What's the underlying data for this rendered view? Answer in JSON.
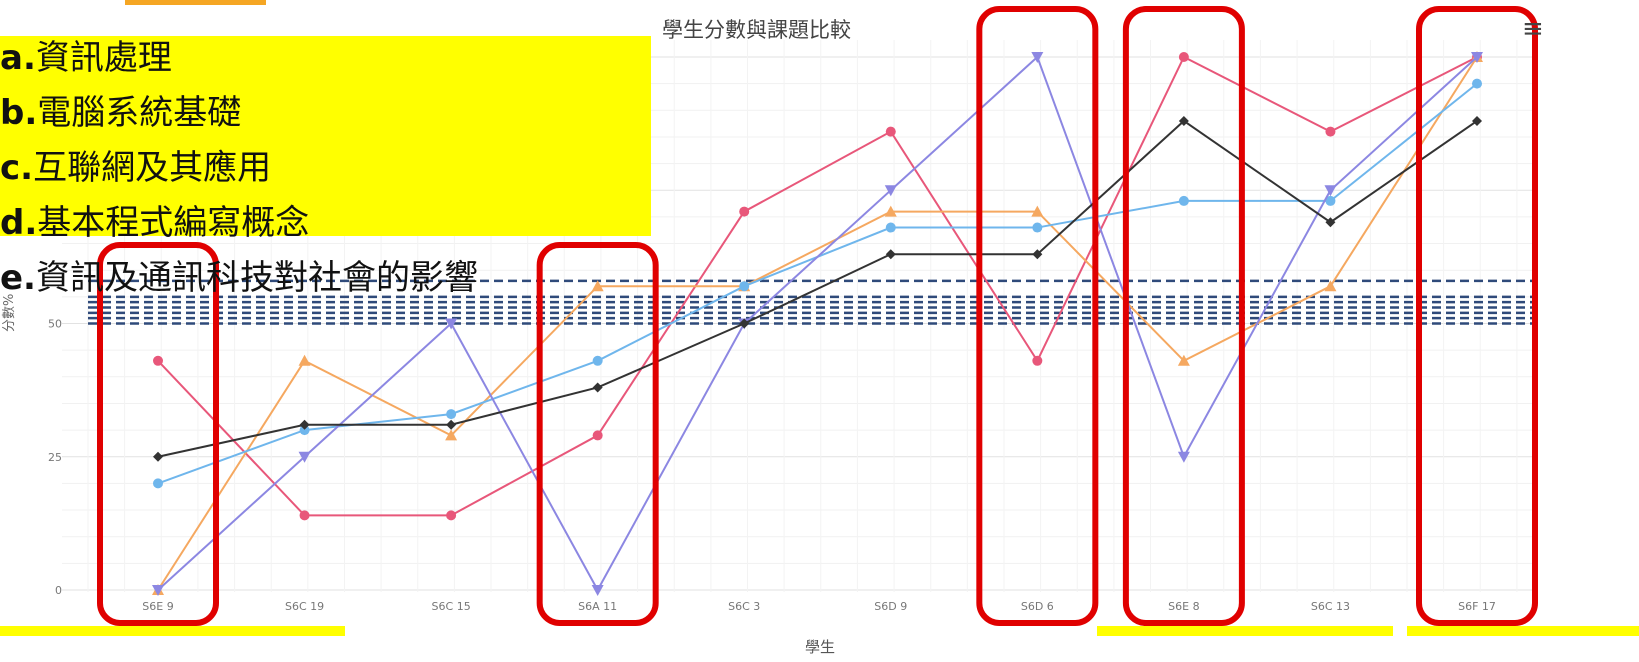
{
  "chart_data": {
    "type": "line",
    "title": "學生分數與課題比較",
    "xlabel": "學生",
    "ylabel": "分數%",
    "ylim": [
      0,
      100
    ],
    "yticks": [
      0,
      25,
      50
    ],
    "categories": [
      "S6E 9",
      "S6C 19",
      "S6C 15",
      "S6A 11",
      "S6C 3",
      "S6D 9",
      "S6D 6",
      "S6E 8",
      "S6C 13",
      "S6F 17"
    ],
    "series": [
      {
        "name": "a.資訊處理",
        "color": "#e8577a",
        "marker": "circle",
        "values": [
          43,
          14,
          14,
          29,
          71,
          86,
          43,
          100,
          86,
          100
        ]
      },
      {
        "name": "b.電腦系統基礎",
        "color": "#f5a860",
        "marker": "triangle-up",
        "values": [
          0,
          43,
          29,
          57,
          57,
          71,
          71,
          43,
          57,
          100
        ]
      },
      {
        "name": "c.互聯網及其應用",
        "color": "#6fb6ec",
        "marker": "circle",
        "values": [
          20,
          30,
          33,
          43,
          57,
          68,
          68,
          73,
          73,
          95
        ]
      },
      {
        "name": "d.基本程式編寫概念",
        "color": "#8c87e2",
        "marker": "triangle-down",
        "values": [
          0,
          25,
          50,
          0,
          50,
          75,
          100,
          25,
          75,
          100
        ]
      },
      {
        "name": "e.資訊及通訊科技對社會的影響",
        "color": "#333333",
        "marker": "diamond",
        "values": [
          25,
          31,
          31,
          38,
          50,
          63,
          63,
          88,
          69,
          88
        ]
      }
    ],
    "reference_lines": [
      50,
      51,
      52,
      53,
      54,
      55,
      58
    ],
    "reference_color": "#2f4a7a",
    "grid": true
  },
  "menu_icon": "hamburger-menu-icon",
  "highlight_color": "#ffff00",
  "annotation_color": "#e00000"
}
